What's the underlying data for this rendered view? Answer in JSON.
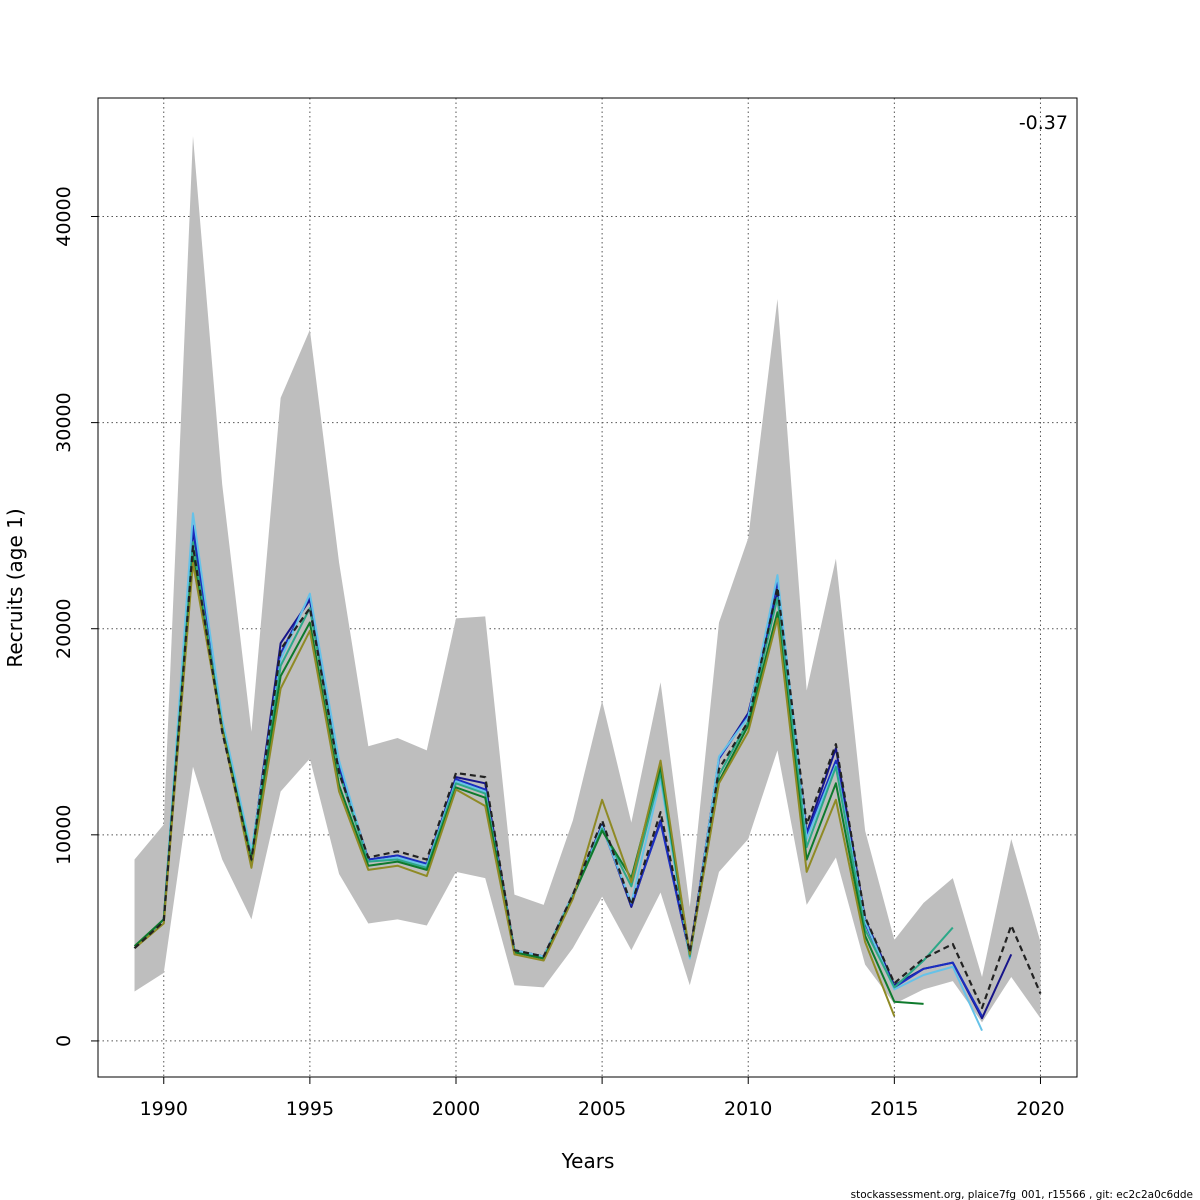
{
  "chart_data": {
    "type": "line",
    "title": "",
    "xlabel": "Years",
    "ylabel": "Recruits (age 1)",
    "xlim": [
      1987.75,
      2021.25
    ],
    "ylim": [
      -1750,
      45750
    ],
    "x_ticks": [
      1990,
      1995,
      2000,
      2005,
      2010,
      2015,
      2020
    ],
    "y_ticks": [
      0,
      10000,
      20000,
      30000,
      40000
    ],
    "grid": true,
    "annotation": "-0.37",
    "footer": "stockassessment.org, plaice7fg_001, r15566 , git: ec2c2a0c6dde",
    "band": {
      "x": [
        1989,
        1990,
        1991,
        1992,
        1993,
        1994,
        1995,
        1996,
        1997,
        1998,
        1999,
        2000,
        2001,
        2002,
        2003,
        2004,
        2005,
        2006,
        2007,
        2008,
        2009,
        2010,
        2011,
        2012,
        2013,
        2014,
        2015,
        2016,
        2017,
        2018,
        2019,
        2020
      ],
      "lower": [
        2400,
        3300,
        13300,
        8800,
        5900,
        12100,
        13700,
        8100,
        5700,
        5900,
        5600,
        8200,
        7900,
        2700,
        2600,
        4500,
        7000,
        4400,
        7200,
        2700,
        8200,
        9800,
        14100,
        6600,
        8900,
        3700,
        1800,
        2500,
        2900,
        900,
        3100,
        1100
      ],
      "upper": [
        8800,
        10500,
        43900,
        27000,
        15000,
        31200,
        34500,
        23200,
        14300,
        14700,
        14100,
        20500,
        20600,
        7100,
        6600,
        10700,
        16500,
        10600,
        17400,
        6500,
        20300,
        24400,
        36000,
        17000,
        23400,
        10200,
        4900,
        6700,
        7900,
        3100,
        9800,
        4800
      ]
    },
    "series": [
      {
        "color": "#222222",
        "dashed": true,
        "x": [
          1989,
          1990,
          1991,
          1992,
          1993,
          1994,
          1995,
          1996,
          1997,
          1998,
          1999,
          2000,
          2001,
          2002,
          2003,
          2004,
          2005,
          2006,
          2007,
          2008,
          2009,
          2010,
          2011,
          2012,
          2013,
          2014,
          2015,
          2016,
          2017,
          2018,
          2019,
          2020
        ],
        "values": [
          4500,
          5800,
          24000,
          15000,
          8800,
          19000,
          21000,
          13000,
          8900,
          9200,
          8800,
          13000,
          12800,
          4400,
          4100,
          7100,
          10700,
          6600,
          11100,
          4300,
          13200,
          15500,
          22000,
          10500,
          14400,
          6000,
          2800,
          4000,
          4700,
          1600,
          5600,
          2300
        ]
      },
      {
        "color": "#17158a",
        "dashed": false,
        "x": [
          1989,
          1990,
          1991,
          1992,
          1993,
          1994,
          1995,
          1996,
          1997,
          1998,
          1999,
          2000,
          2001,
          2002,
          2003,
          2004,
          2005,
          2006,
          2007,
          2008,
          2009,
          2010,
          2011,
          2012,
          2013,
          2014,
          2015,
          2016,
          2017,
          2018,
          2019
        ],
        "values": [
          4500,
          5900,
          24800,
          15300,
          9000,
          19300,
          21400,
          13300,
          8800,
          9000,
          8500,
          12800,
          12500,
          4400,
          4100,
          7100,
          10500,
          6500,
          10700,
          4200,
          13700,
          15900,
          21800,
          10100,
          14200,
          5900,
          2700,
          3500,
          3800,
          1100,
          4200
        ]
      },
      {
        "color": "#1b2ec0",
        "dashed": false,
        "x": [
          1989,
          1990,
          1991,
          1992,
          1993,
          1994,
          1995,
          1996,
          1997,
          1998,
          1999,
          2000,
          2001,
          2002,
          2003,
          2004,
          2005,
          2006,
          2007,
          2008,
          2009,
          2010,
          2011,
          2012,
          2013,
          2014,
          2015,
          2016,
          2017,
          2018
        ],
        "values": [
          4500,
          5900,
          25000,
          15400,
          9100,
          18800,
          21600,
          13400,
          8800,
          9000,
          8600,
          12700,
          12200,
          4400,
          4100,
          7100,
          10400,
          6600,
          10600,
          4200,
          13700,
          15800,
          22300,
          10000,
          13600,
          5700,
          2600,
          3500,
          3800,
          1200
        ]
      },
      {
        "color": "#66c2e8",
        "dashed": false,
        "x": [
          1989,
          1990,
          1991,
          1992,
          1993,
          1994,
          1995,
          1996,
          1997,
          1998,
          1999,
          2000,
          2001,
          2002,
          2003,
          2004,
          2005,
          2006,
          2007,
          2008,
          2009,
          2010,
          2011,
          2012,
          2013,
          2014,
          2015,
          2016,
          2017,
          2018
        ],
        "values": [
          4500,
          5900,
          25600,
          15600,
          9200,
          18500,
          21700,
          13600,
          8700,
          8900,
          8500,
          12600,
          12100,
          4400,
          4100,
          7100,
          10400,
          6700,
          12700,
          4000,
          13800,
          15700,
          22600,
          9800,
          13400,
          5800,
          2500,
          3200,
          3600,
          500
        ]
      },
      {
        "color": "#2ca888",
        "dashed": false,
        "x": [
          1989,
          1990,
          1991,
          1992,
          1993,
          1994,
          1995,
          1996,
          1997,
          1998,
          1999,
          2000,
          2001,
          2002,
          2003,
          2004,
          2005,
          2006,
          2007,
          2008,
          2009,
          2010,
          2011,
          2012,
          2013,
          2014,
          2015,
          2016,
          2017
        ],
        "values": [
          4500,
          5900,
          24200,
          15200,
          8900,
          18200,
          21000,
          13000,
          8700,
          8800,
          8400,
          12500,
          12000,
          4300,
          4000,
          7000,
          10300,
          7500,
          13000,
          4100,
          12900,
          15500,
          21500,
          9400,
          13300,
          5400,
          2600,
          3900,
          5500
        ]
      },
      {
        "color": "#0e7a2c",
        "dashed": false,
        "x": [
          1989,
          1990,
          1991,
          1992,
          1993,
          1994,
          1995,
          1996,
          1997,
          1998,
          1999,
          2000,
          2001,
          2002,
          2003,
          2004,
          2005,
          2006,
          2007,
          2008,
          2009,
          2010,
          2011,
          2012,
          2013,
          2014,
          2015,
          2016
        ],
        "values": [
          4600,
          5900,
          23500,
          15200,
          8700,
          17700,
          20300,
          12400,
          8500,
          8700,
          8300,
          12300,
          11800,
          4300,
          4000,
          7000,
          10200,
          7900,
          13300,
          4200,
          12600,
          15300,
          20800,
          8800,
          12500,
          5100,
          1900,
          1800
        ]
      },
      {
        "color": "#8f8a25",
        "dashed": false,
        "x": [
          1989,
          1990,
          1991,
          1992,
          1993,
          1994,
          1995,
          1996,
          1997,
          1998,
          1999,
          2000,
          2001,
          2002,
          2003,
          2004,
          2005,
          2006,
          2007,
          2008,
          2009,
          2010,
          2011,
          2012,
          2013,
          2014,
          2015
        ],
        "values": [
          4500,
          5700,
          23200,
          15100,
          8400,
          17100,
          19900,
          12100,
          8300,
          8500,
          8000,
          12200,
          11400,
          4200,
          3900,
          6900,
          11700,
          7700,
          13600,
          4200,
          12500,
          15000,
          20500,
          8200,
          11700,
          4800,
          1200
        ]
      }
    ]
  }
}
